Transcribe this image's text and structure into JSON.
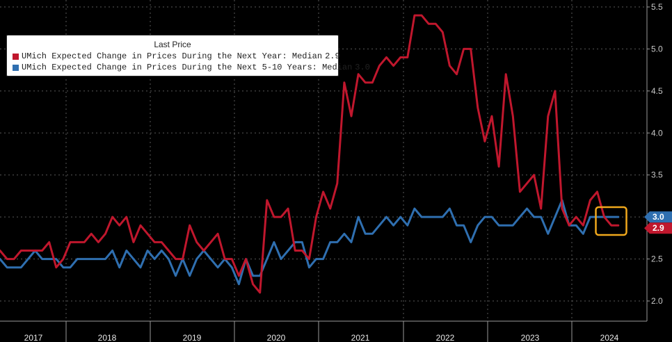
{
  "chart_data": {
    "type": "line",
    "title": "",
    "xlabel": "",
    "ylabel": "",
    "ylim": [
      1.9,
      5.6
    ],
    "y_ticks": [
      "2.0",
      "2.5",
      "3.0",
      "3.5",
      "4.0",
      "4.5",
      "5.0",
      "5.5"
    ],
    "x_ticks": [
      "2017",
      "2018",
      "2019",
      "2020",
      "2021",
      "2022",
      "2023",
      "2024"
    ],
    "grid": true,
    "legend_position": "top-left",
    "legend": {
      "title": "Last Price",
      "entries": [
        {
          "name": "UMich Expected Change in Prices During the Next Year: Median",
          "value": "2.9",
          "color": "#c0172d"
        },
        {
          "name": "UMich Expected Change in Prices During the Next 5-10 Years: Median",
          "value": "3.0",
          "color": "#2f6fb0"
        }
      ]
    },
    "axis_tags": [
      {
        "value": "3.0",
        "color": "#2f6fb0"
      },
      {
        "value": "2.9",
        "color": "#c0172d"
      }
    ],
    "highlight_color": "#f0a81c",
    "start_label": "2016-08",
    "series": [
      {
        "name": "UMich Expected Change in Prices During the Next Year: Median",
        "color": "#c0172d",
        "values": [
          2.6,
          2.5,
          2.5,
          2.6,
          2.6,
          2.6,
          2.6,
          2.7,
          2.4,
          2.5,
          2.7,
          2.7,
          2.7,
          2.8,
          2.7,
          2.8,
          3.0,
          2.9,
          3.0,
          2.7,
          2.9,
          2.8,
          2.7,
          2.7,
          2.6,
          2.5,
          2.5,
          2.9,
          2.7,
          2.6,
          2.7,
          2.8,
          2.5,
          2.5,
          2.3,
          2.5,
          2.2,
          2.1,
          3.2,
          3.0,
          3.0,
          3.1,
          2.6,
          2.6,
          2.5,
          3.0,
          3.3,
          3.1,
          3.4,
          4.6,
          4.2,
          4.7,
          4.6,
          4.6,
          4.8,
          4.9,
          4.8,
          4.9,
          4.9,
          5.4,
          5.4,
          5.3,
          5.3,
          5.2,
          4.8,
          4.7,
          5.0,
          5.0,
          4.3,
          3.9,
          4.2,
          3.6,
          4.7,
          4.2,
          3.3,
          3.4,
          3.5,
          3.1,
          4.2,
          4.5,
          3.1,
          2.9,
          3.0,
          2.9,
          3.2,
          3.3,
          3.0,
          2.9,
          2.9
        ]
      },
      {
        "name": "UMich Expected Change in Prices During the Next 5-10 Years: Median",
        "color": "#2f6fb0",
        "values": [
          2.5,
          2.4,
          2.4,
          2.4,
          2.5,
          2.6,
          2.5,
          2.5,
          2.5,
          2.4,
          2.4,
          2.5,
          2.5,
          2.5,
          2.5,
          2.5,
          2.6,
          2.4,
          2.6,
          2.5,
          2.4,
          2.6,
          2.5,
          2.6,
          2.5,
          2.3,
          2.5,
          2.3,
          2.5,
          2.6,
          2.5,
          2.4,
          2.5,
          2.4,
          2.2,
          2.5,
          2.3,
          2.3,
          2.5,
          2.7,
          2.5,
          2.6,
          2.7,
          2.7,
          2.4,
          2.5,
          2.5,
          2.7,
          2.7,
          2.8,
          2.7,
          3.0,
          2.8,
          2.8,
          2.9,
          3.0,
          2.9,
          3.0,
          2.9,
          3.1,
          3.0,
          3.0,
          3.0,
          3.0,
          3.1,
          2.9,
          2.9,
          2.7,
          2.9,
          3.0,
          3.0,
          2.9,
          2.9,
          2.9,
          3.0,
          3.1,
          3.0,
          3.0,
          2.8,
          3.0,
          3.2,
          2.9,
          2.9,
          2.8,
          3.0,
          3.0,
          3.0,
          3.0,
          3.0
        ]
      }
    ]
  }
}
